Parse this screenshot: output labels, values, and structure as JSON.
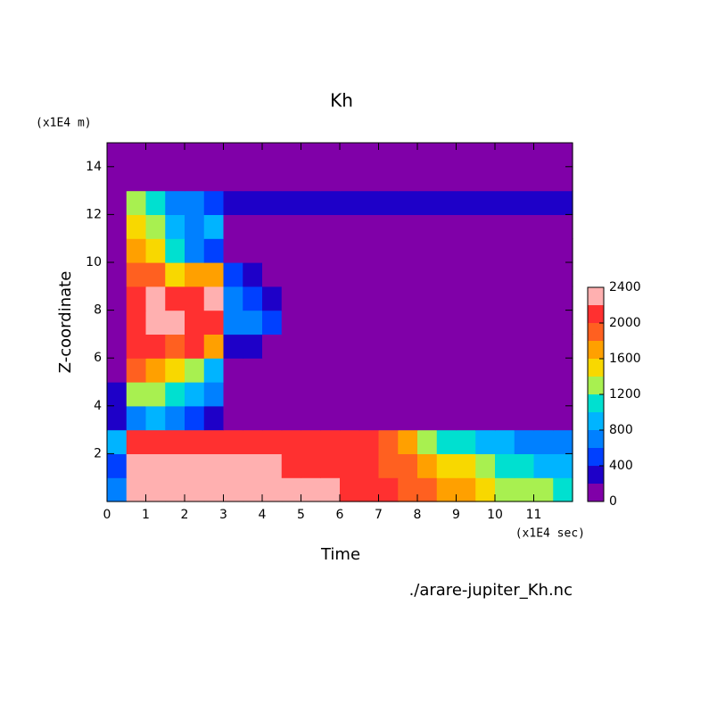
{
  "chart_data": {
    "type": "contour",
    "title": "Kh",
    "y_unit": "(x1E4 m)",
    "ylabel": "Z-coordinate",
    "xlabel": "Time",
    "x_unit": "(x1E4 sec)",
    "source": "./arare-jupiter_Kh.nc",
    "xlim": [
      0,
      12
    ],
    "xticks": [
      0,
      1,
      2,
      3,
      4,
      5,
      6,
      7,
      8,
      9,
      10,
      11
    ],
    "ylim": [
      0,
      15
    ],
    "yticks": [
      2,
      4,
      6,
      8,
      10,
      12,
      14
    ],
    "x": [
      0.25,
      0.75,
      1.25,
      1.75,
      2.25,
      2.75,
      3.25,
      3.75,
      4.25,
      4.75,
      5.25,
      5.75,
      6.25,
      6.75,
      7.25,
      7.75,
      8.25,
      8.75,
      9.25,
      9.75,
      10.25,
      10.75,
      11.25,
      11.75
    ],
    "y": [
      0.5,
      1.5,
      2.5,
      3.5,
      4.5,
      5.5,
      6.5,
      7.5,
      8.5,
      9.5,
      10.5,
      11.5,
      12.5,
      13.5,
      14.5
    ],
    "z": [
      [
        600,
        2300,
        2300,
        2300,
        2300,
        2300,
        2300,
        2300,
        2300,
        2300,
        2200,
        2200,
        2100,
        2000,
        2000,
        1900,
        1800,
        1600,
        1600,
        1400,
        1200,
        1200,
        1200,
        1000
      ],
      [
        400,
        2200,
        2200,
        2200,
        2200,
        2200,
        2200,
        2200,
        2200,
        2100,
        2000,
        2000,
        2000,
        2000,
        1800,
        1800,
        1600,
        1400,
        1400,
        1200,
        1000,
        1000,
        800,
        800
      ],
      [
        800,
        2000,
        2000,
        2000,
        2000,
        2000,
        2000,
        2000,
        2000,
        2000,
        2000,
        2000,
        2000,
        2000,
        1800,
        1600,
        1200,
        1000,
        1000,
        900,
        800,
        700,
        600,
        600
      ],
      [
        200,
        600,
        800,
        600,
        400,
        300,
        100,
        0,
        0,
        0,
        0,
        0,
        0,
        0,
        0,
        0,
        0,
        0,
        0,
        0,
        0,
        0,
        0,
        0
      ],
      [
        300,
        1200,
        1200,
        1000,
        800,
        600,
        100,
        0,
        0,
        0,
        0,
        0,
        0,
        0,
        0,
        0,
        0,
        0,
        0,
        0,
        0,
        0,
        0,
        0
      ],
      [
        0,
        1800,
        1600,
        1400,
        1200,
        800,
        100,
        0,
        0,
        0,
        0,
        0,
        0,
        0,
        0,
        0,
        0,
        0,
        0,
        0,
        0,
        0,
        0,
        0
      ],
      [
        0,
        2000,
        2100,
        1800,
        2000,
        1600,
        300,
        200,
        0,
        0,
        0,
        0,
        0,
        0,
        0,
        0,
        0,
        0,
        0,
        0,
        0,
        0,
        0,
        0
      ],
      [
        0,
        2000,
        2200,
        2200,
        2000,
        2000,
        600,
        600,
        400,
        0,
        0,
        0,
        0,
        0,
        0,
        0,
        0,
        0,
        0,
        0,
        0,
        0,
        0,
        0
      ],
      [
        0,
        2000,
        2200,
        2100,
        2100,
        2200,
        600,
        500,
        300,
        0,
        0,
        0,
        0,
        0,
        0,
        0,
        0,
        0,
        0,
        0,
        0,
        0,
        0,
        0
      ],
      [
        0,
        1800,
        1800,
        1400,
        1600,
        1600,
        400,
        200,
        0,
        0,
        0,
        0,
        0,
        0,
        0,
        0,
        0,
        0,
        0,
        0,
        0,
        0,
        0,
        0
      ],
      [
        0,
        1600,
        1400,
        1000,
        600,
        500,
        100,
        0,
        0,
        0,
        0,
        0,
        0,
        0,
        0,
        0,
        0,
        0,
        0,
        0,
        0,
        0,
        0,
        0
      ],
      [
        0,
        1400,
        1200,
        800,
        700,
        900,
        100,
        0,
        0,
        0,
        0,
        0,
        0,
        0,
        0,
        0,
        0,
        0,
        0,
        0,
        0,
        0,
        0,
        0
      ],
      [
        0,
        1200,
        1000,
        600,
        600,
        500,
        300,
        300,
        300,
        300,
        300,
        300,
        300,
        300,
        300,
        300,
        300,
        300,
        300,
        300,
        300,
        300,
        300,
        300
      ],
      [
        0,
        0,
        0,
        0,
        0,
        0,
        0,
        0,
        0,
        0,
        0,
        0,
        0,
        0,
        0,
        0,
        0,
        0,
        0,
        0,
        0,
        0,
        0,
        0
      ],
      [
        0,
        0,
        0,
        0,
        0,
        0,
        0,
        0,
        0,
        0,
        0,
        0,
        0,
        0,
        0,
        0,
        0,
        0,
        0,
        0,
        0,
        0,
        0,
        0
      ]
    ],
    "levels": [
      0,
      200,
      400,
      600,
      800,
      1000,
      1200,
      1400,
      1600,
      1800,
      2000,
      2200,
      2400
    ],
    "colors": [
      "#8000a8",
      "#1e00c8",
      "#0040ff",
      "#0080ff",
      "#00b4ff",
      "#00e0d0",
      "#a8f050",
      "#f8d800",
      "#ffa000",
      "#ff6020",
      "#ff3030",
      "#ffb0b0"
    ],
    "colorbar_ticks": [
      0,
      400,
      800,
      1200,
      1600,
      2000,
      2400
    ]
  }
}
